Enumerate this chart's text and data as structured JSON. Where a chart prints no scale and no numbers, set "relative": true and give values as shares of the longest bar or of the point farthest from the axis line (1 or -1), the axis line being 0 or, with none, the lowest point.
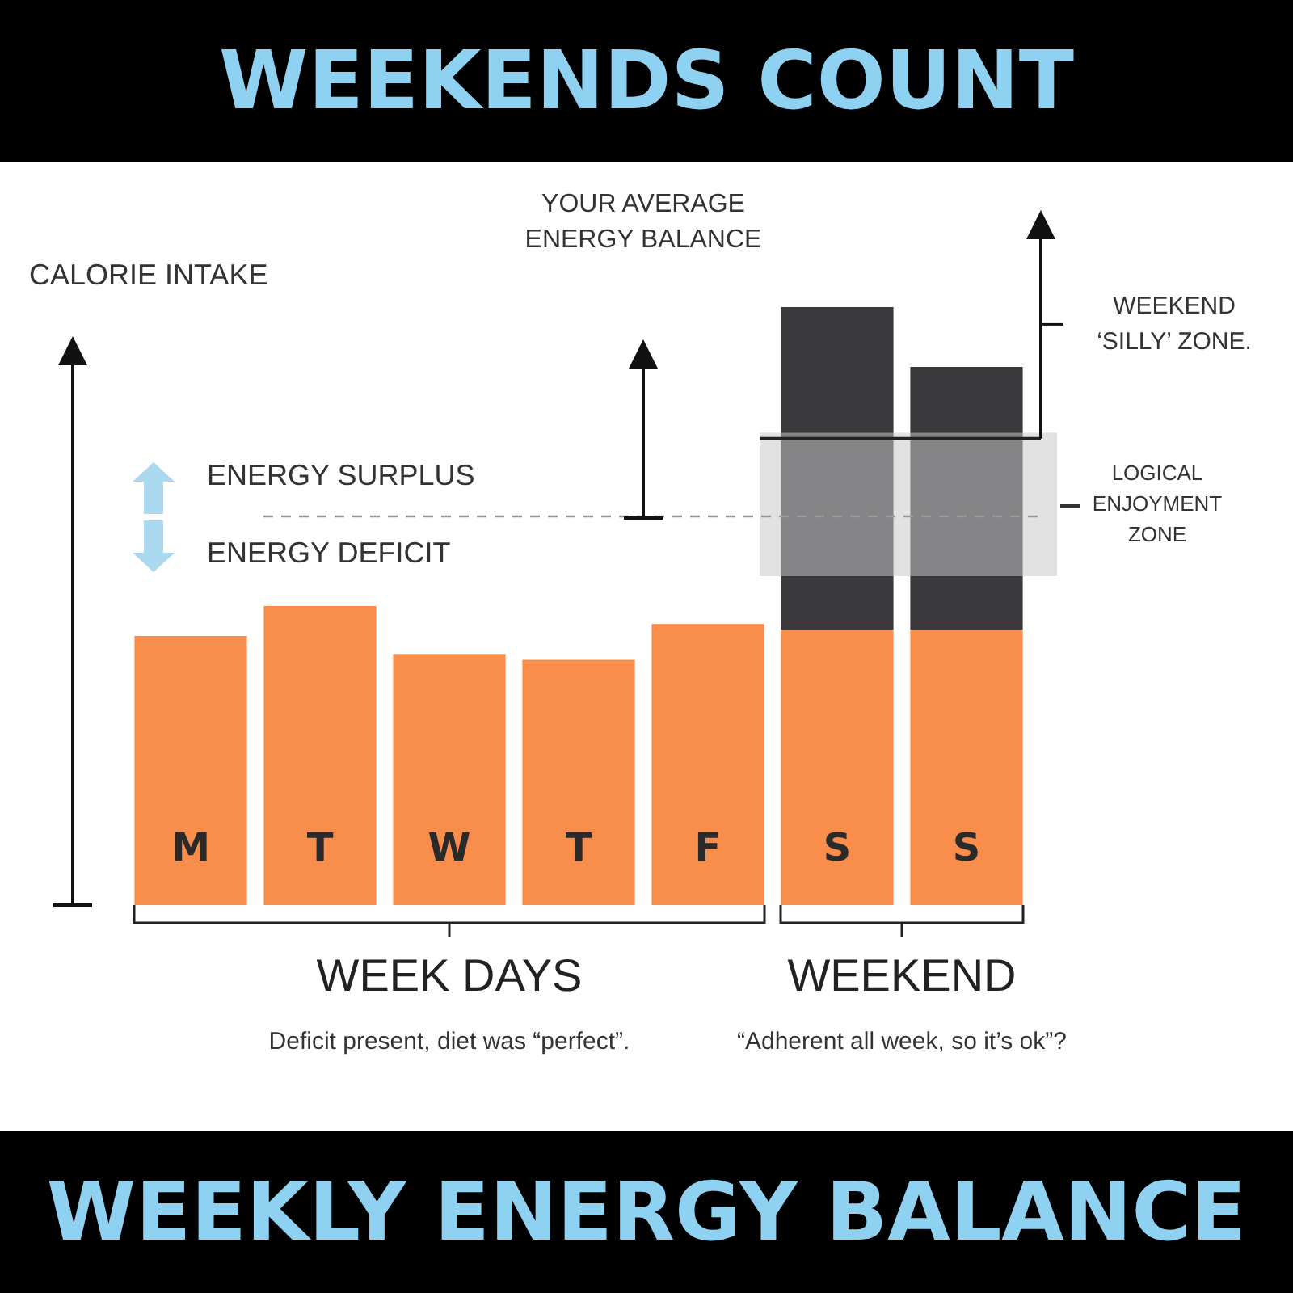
{
  "chart_data": {
    "type": "bar",
    "title": "WEEKENDS COUNT",
    "subtitle": "WEEKLY ENERGY BALANCE",
    "ylabel": "CALORIE INTAKE",
    "relative": true,
    "stacked": true,
    "grid": false,
    "legend": false,
    "categories": [
      "M",
      "T",
      "W",
      "T",
      "F",
      "S",
      "S"
    ],
    "series": [
      {
        "color": "#f98d4b",
        "values": [
          0.45,
          0.5,
          0.42,
          0.41,
          0.47,
          0.46,
          0.46
        ]
      },
      {
        "color": "#3a3a3c",
        "values": [
          null,
          null,
          null,
          null,
          null,
          0.54,
          0.44
        ]
      }
    ],
    "ref_lines": [
      {
        "axis": "y",
        "value": 0.65,
        "color": "#999999",
        "line_style": "dashed"
      },
      {
        "axis": "y",
        "value": 0.78,
        "label": "WEEKEND ‘SILLY’ ZONE.",
        "color": "#222222",
        "line_style": "solid"
      }
    ],
    "bands": [
      {
        "axis": "y",
        "from": 0.55,
        "to": 0.79,
        "label": "LOGICAL ENJOYMENT ZONE",
        "color": "#e2e2e2"
      }
    ],
    "annotations": [
      "ENERGY SURPLUS",
      "ENERGY DEFICIT",
      "YOUR AVERAGE ENERGY BALANCE",
      "WEEK DAYS",
      "WEEKEND",
      "Deficit present, diet was “perfect”.",
      "“Adherent all week, so it’s ok”?"
    ]
  }
}
